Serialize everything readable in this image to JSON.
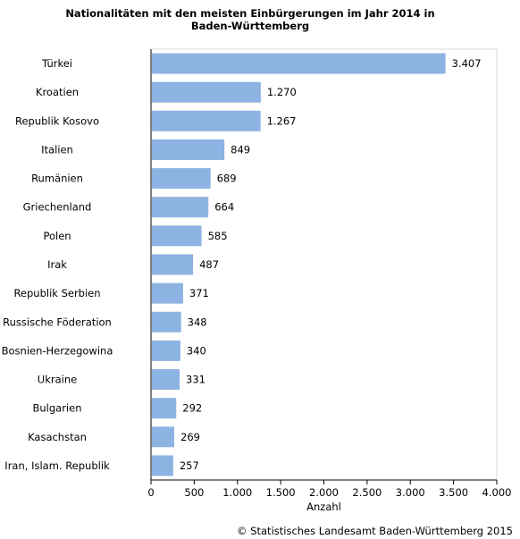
{
  "chart_data": {
    "type": "bar",
    "orientation": "horizontal",
    "title": "Nationalitäten mit den meisten Einbürgerungen im Jahr 2014 in Baden-Württemberg",
    "categories": [
      "Türkei",
      "Kroatien",
      "Republik Kosovo",
      "Italien",
      "Rumänien",
      "Griechenland",
      "Polen",
      "Irak",
      "Republik Serbien",
      "Russische Föderation",
      "Bosnien-Herzegowina",
      "Ukraine",
      "Bulgarien",
      "Kasachstan",
      "Iran, Islam. Republik"
    ],
    "values": [
      3407,
      1270,
      1267,
      849,
      689,
      664,
      585,
      487,
      371,
      348,
      340,
      331,
      292,
      269,
      257
    ],
    "value_labels": [
      "3.407",
      "1.270",
      "1.267",
      "849",
      "689",
      "664",
      "585",
      "487",
      "371",
      "348",
      "340",
      "331",
      "292",
      "269",
      "257"
    ],
    "xlabel": "Anzahl",
    "xlim": [
      0,
      4000
    ],
    "xticks": [
      0,
      500,
      1000,
      1500,
      2000,
      2500,
      3000,
      3500,
      4000
    ],
    "xtick_labels": [
      "0",
      "500",
      "1.000",
      "1.500",
      "2.000",
      "2.500",
      "3.000",
      "3.500",
      "4.000"
    ],
    "grid": false,
    "bar_color": "#8db3e2"
  },
  "source": "© Statistisches Landesamt Baden-Württemberg 2015"
}
